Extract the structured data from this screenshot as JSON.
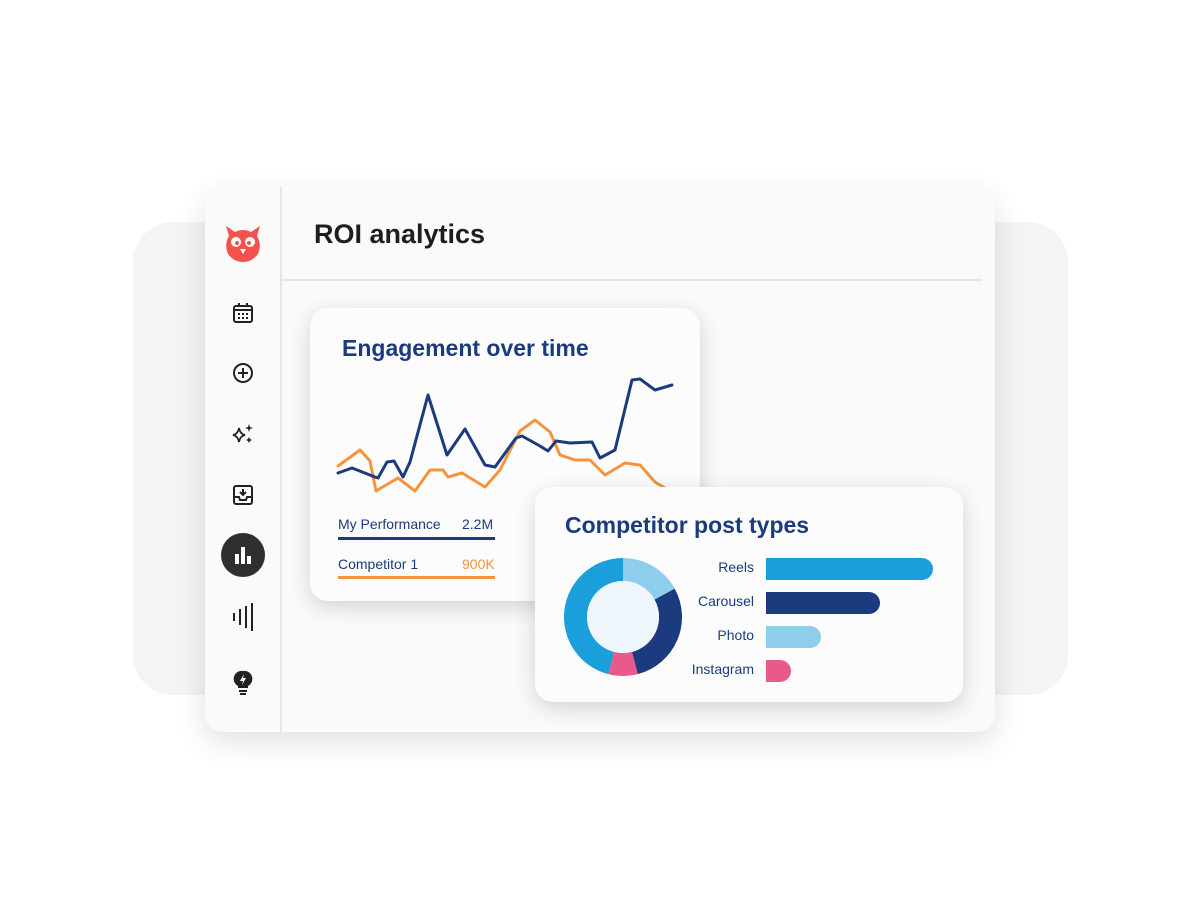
{
  "header": {
    "title": "ROI analytics"
  },
  "sidebar": {
    "items": [
      {
        "icon": "calendar-icon"
      },
      {
        "icon": "plus-circle-icon"
      },
      {
        "icon": "sparkles-icon"
      },
      {
        "icon": "inbox-icon"
      },
      {
        "icon": "bar-chart-icon",
        "active": true
      },
      {
        "icon": "audio-bars-icon"
      },
      {
        "icon": "lightbulb-icon"
      }
    ]
  },
  "engagement": {
    "title": "Engagement over time",
    "legend": [
      {
        "label": "My Performance",
        "value": "2.2M",
        "color": "#1b3b7e"
      },
      {
        "label": "Competitor 1",
        "value": "900K",
        "color": "#f4943b"
      }
    ]
  },
  "competitor": {
    "title": "Competitor post types",
    "donut": [
      {
        "share": 0.17,
        "color": "#8ecdec"
      },
      {
        "share": 0.29,
        "color": "#1b3b7e"
      },
      {
        "share": 0.08,
        "color": "#e95a8c"
      },
      {
        "share": 0.46,
        "color": "#1a9fdb"
      }
    ],
    "bars": [
      {
        "label": "Reels",
        "value": 100,
        "color": "#1a9fdb"
      },
      {
        "label": "Carousel",
        "value": 68,
        "color": "#1b3b7e"
      },
      {
        "label": "Photo",
        "value": 33,
        "color": "#8ecdec"
      },
      {
        "label": "Instagram",
        "value": 15,
        "color": "#e95a8c"
      }
    ]
  },
  "colors": {
    "brand": "#f4524d",
    "active_nav": "#2f2f2f"
  }
}
